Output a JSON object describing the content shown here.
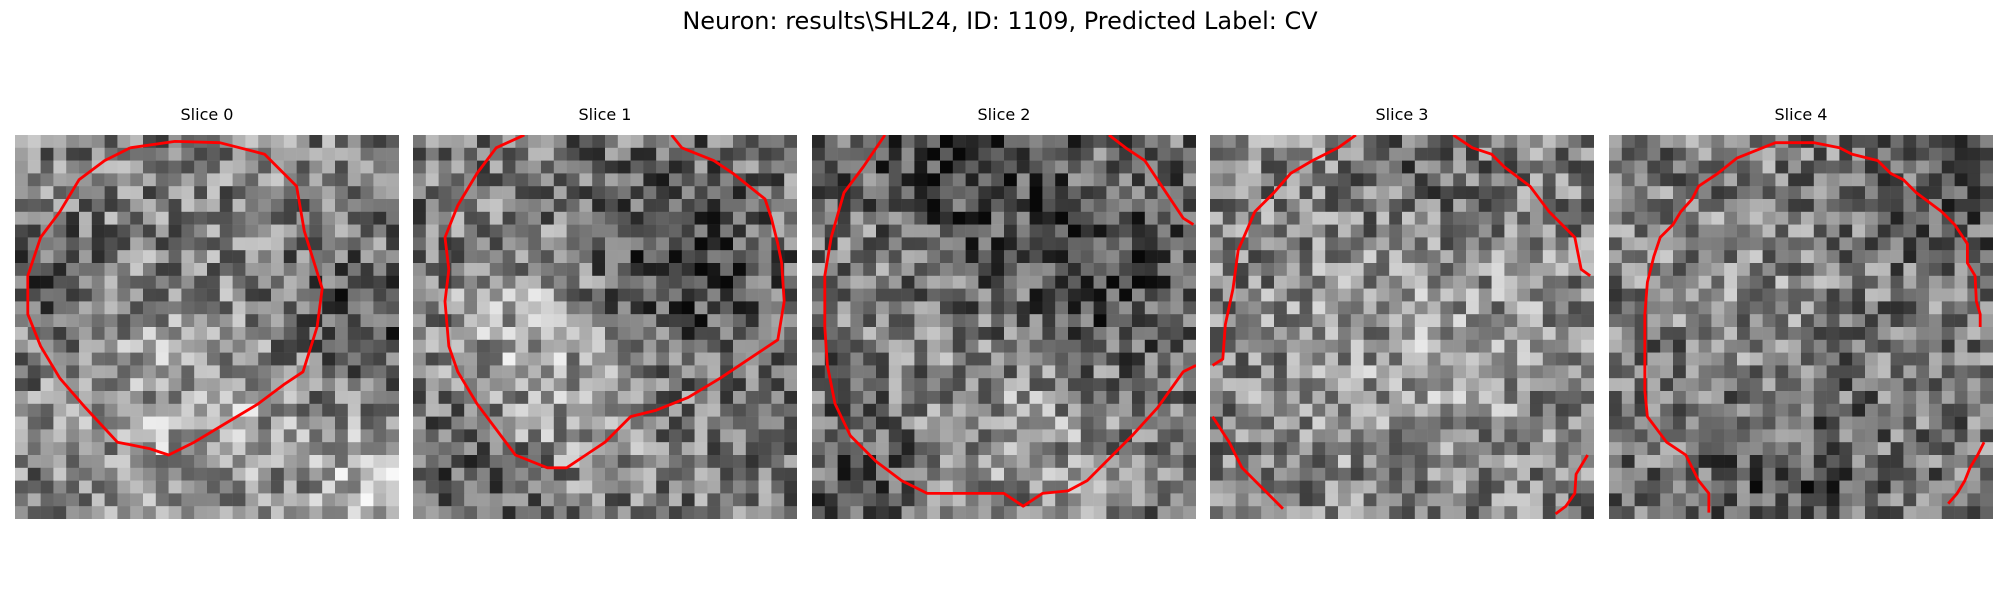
{
  "figure": {
    "suptitle": "Neuron: results\\SHL24, ID: 1109, Predicted Label: CV",
    "contour_color": "#ff0000",
    "colormap": "gray",
    "grid_cells": 30
  },
  "panels": [
    {
      "title": "Slice 0"
    },
    {
      "title": "Slice 1"
    },
    {
      "title": "Slice 2"
    },
    {
      "title": "Slice 3"
    },
    {
      "title": "Slice 4"
    }
  ]
}
